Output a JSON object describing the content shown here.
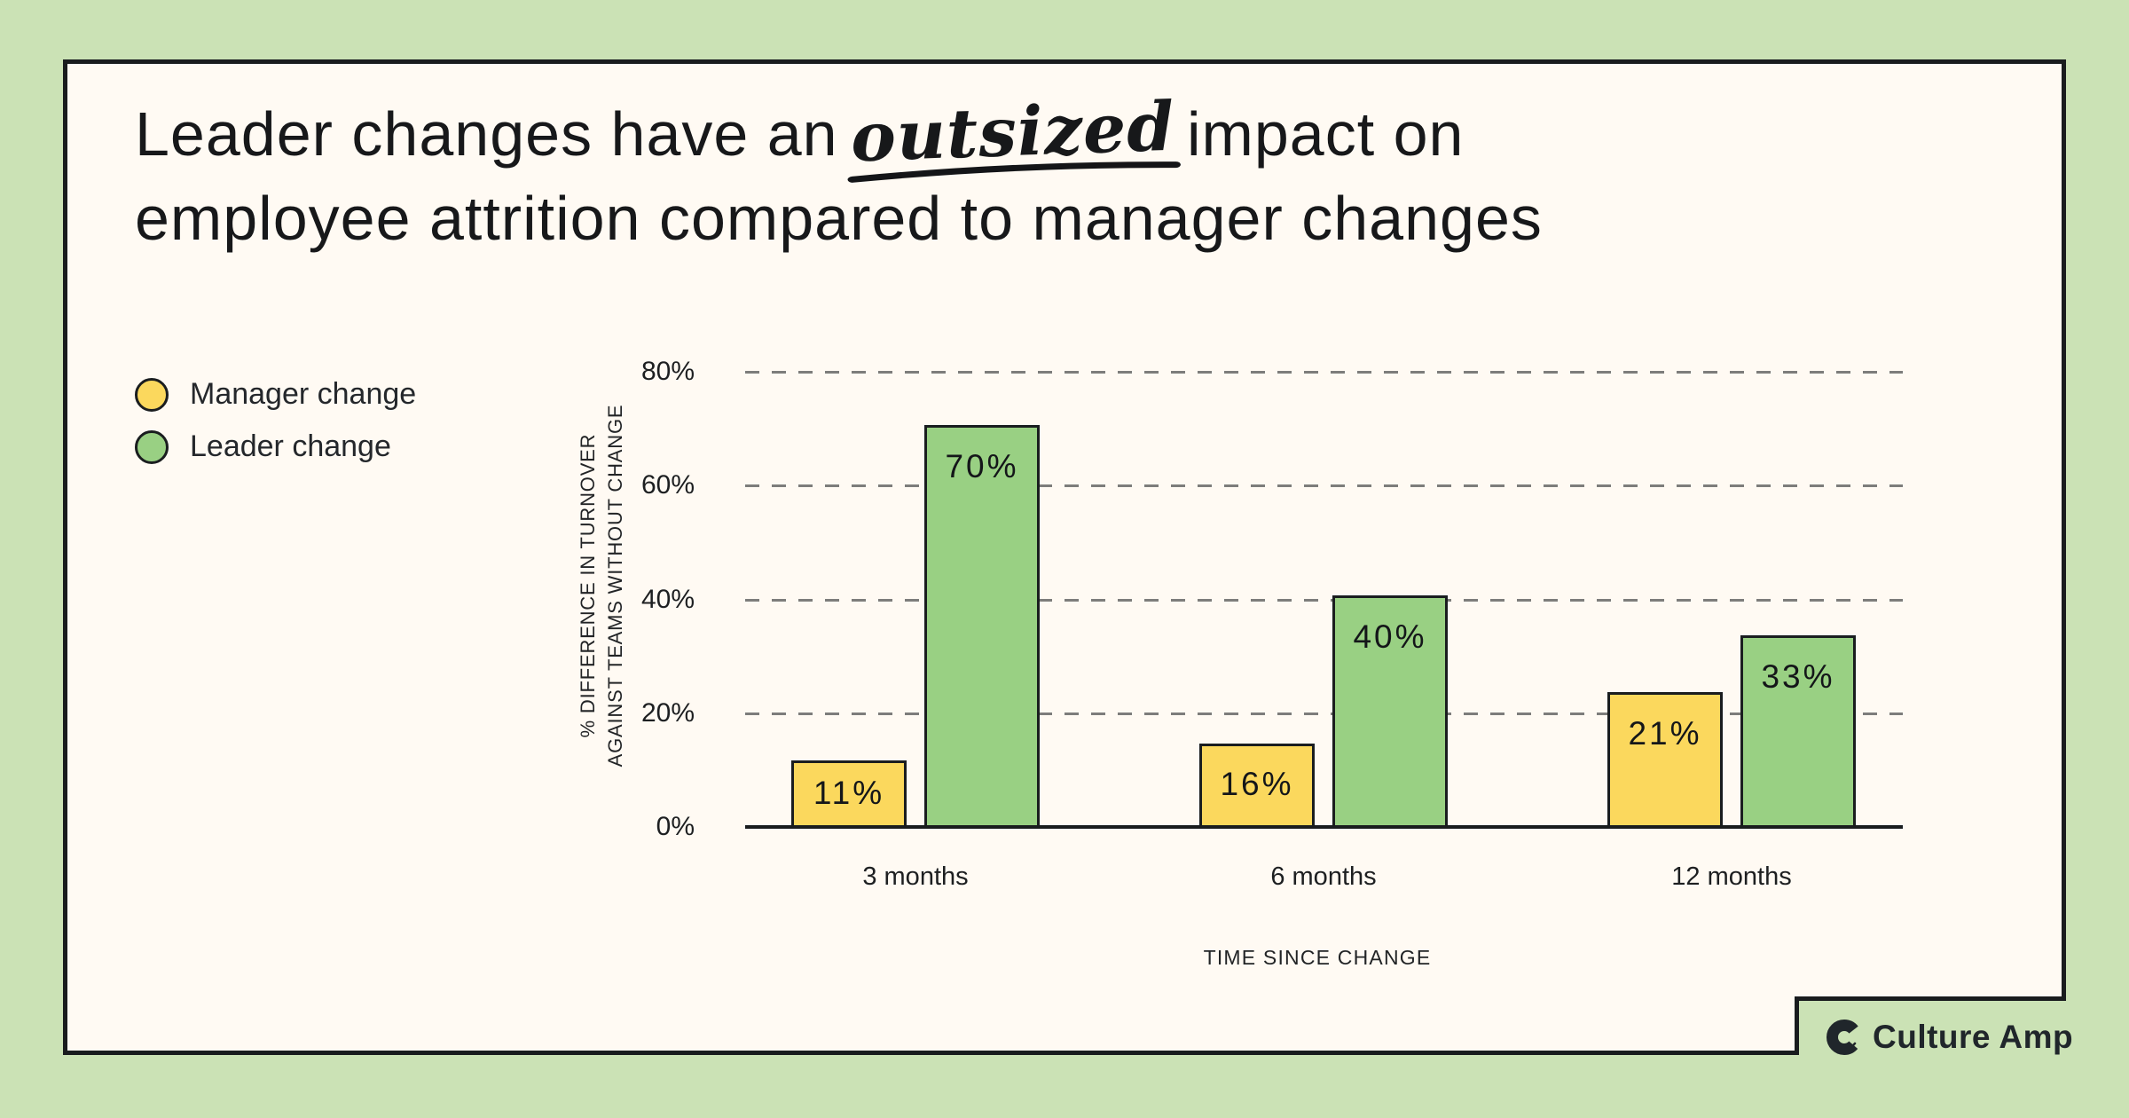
{
  "title": {
    "line1_prefix": "Leader changes have an",
    "highlight_word": "outsized",
    "line1_suffix": "impact on",
    "line2": "employee attrition compared to manager changes"
  },
  "legend": {
    "items": [
      {
        "label": "Manager change",
        "color": "#fbd85d"
      },
      {
        "label": "Leader change",
        "color": "#99d083"
      }
    ]
  },
  "chart_data": {
    "type": "bar",
    "categories": [
      "3 months",
      "6 months",
      "12 months"
    ],
    "series": [
      {
        "name": "Manager change",
        "color": "#fbd85d",
        "values": [
          11,
          16,
          21
        ]
      },
      {
        "name": "Leader change",
        "color": "#99d083",
        "values": [
          70,
          40,
          33
        ]
      }
    ],
    "value_suffix": "%",
    "xlabel": "TIME SINCE CHANGE",
    "ylabel_lines": [
      "% DIFFERENCE IN TURNOVER",
      "AGAINST TEAMS WITHOUT CHANGE"
    ],
    "yticks": [
      "80%",
      "60%",
      "40%",
      "20%",
      "0%"
    ],
    "ytick_pcts": [
      80,
      60,
      40,
      20,
      0
    ],
    "ylim": [
      0,
      80
    ],
    "grid": "horizontal-dashed",
    "legend_position": "left",
    "bar_display_heights_pct": [
      [
        12,
        15,
        24
      ],
      [
        71,
        41,
        34
      ]
    ]
  },
  "branding": {
    "logo_text": "Culture Amp"
  },
  "colors": {
    "background": "#cbe2b5",
    "card": "#fffaf3",
    "border": "#191c1e",
    "manager_bar": "#fbd85d",
    "leader_bar": "#99d083",
    "gridline": "#7d7d7b",
    "text": "#17181a"
  }
}
